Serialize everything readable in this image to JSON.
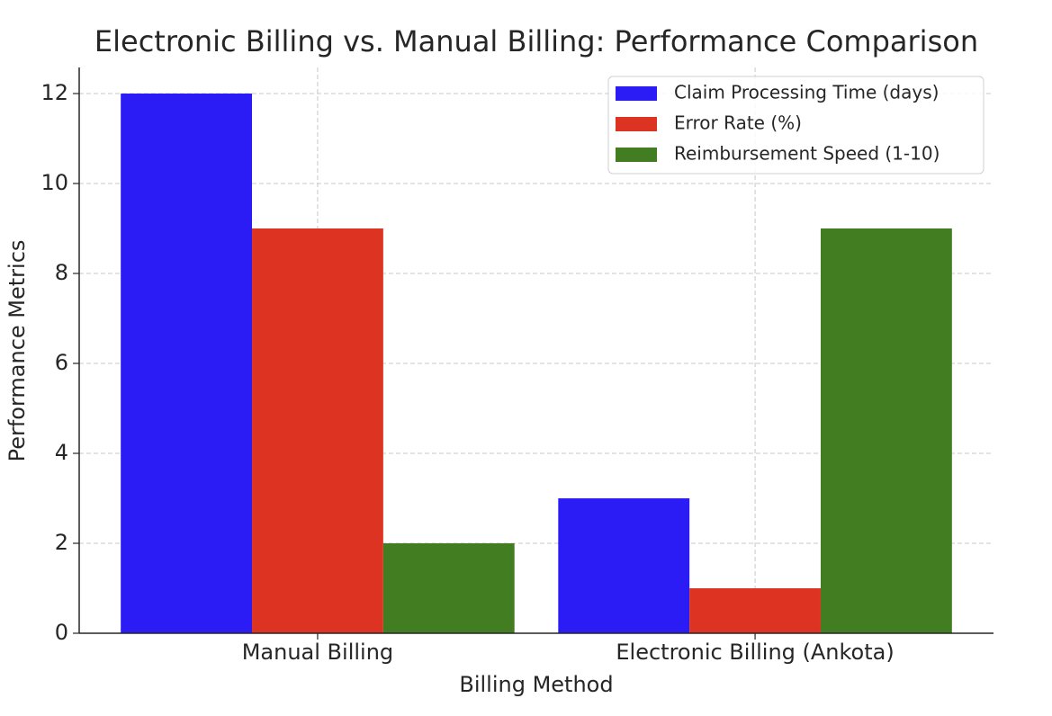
{
  "chart_data": {
    "type": "bar",
    "title": "Electronic Billing vs. Manual Billing: Performance Comparison",
    "x_label": "Billing Method",
    "y_label": "Performance Metrics",
    "categories": [
      "Manual Billing",
      "Electronic Billing (Ankota)"
    ],
    "series": [
      {
        "name": "Claim Processing Time (days)",
        "color": "#2b1cf5",
        "values": [
          12,
          3
        ]
      },
      {
        "name": "Error Rate (%)",
        "color": "#dd3322",
        "values": [
          9,
          1
        ]
      },
      {
        "name": "Reimbursement Speed (1-10)",
        "color": "#427d22",
        "values": [
          2,
          9
        ]
      }
    ],
    "ylim": [
      0,
      12.58
    ],
    "yticks": [
      0,
      2,
      4,
      6,
      8,
      10,
      12
    ],
    "grid": true,
    "legend": "upper right"
  }
}
